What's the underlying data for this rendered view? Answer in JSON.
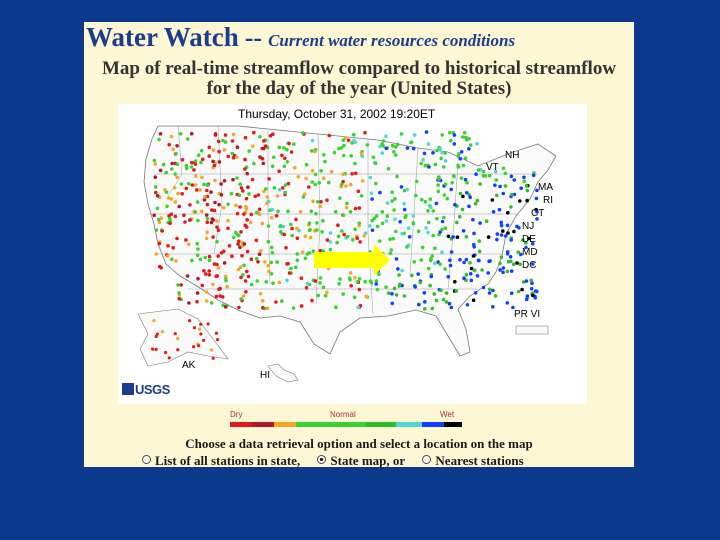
{
  "header": {
    "title": "Water Watch",
    "dash": "--",
    "subtitle_italic": "Current water resources conditions"
  },
  "description_line1": "Map of real-time streamflow compared to historical streamflow",
  "description_line2": "for the day of the year (United States)",
  "map": {
    "date": "Thursday, October 31, 2002 19:20ET",
    "labels": {
      "NH": "NH",
      "VT": "VT",
      "MA": "MA",
      "RI": "RI",
      "CT": "CT",
      "NJ": "NJ",
      "DE": "DE",
      "MD": "MD",
      "DC": "DC",
      "PRVI": "PR VI",
      "AK": "AK",
      "HI": "HI"
    },
    "logo": "USGS"
  },
  "legend": {
    "dry": "Dry",
    "normal": "Normal",
    "wet": "Wet",
    "colors": [
      "#e31a1c",
      "#b2182b",
      "#f5a623",
      "#39d231",
      "#2fbe2a",
      "#51d6d6",
      "#1040ff",
      "#000000"
    ]
  },
  "instructions": "Choose a data retrieval option and select a location on the map",
  "options": [
    {
      "label": "List of all stations in state,",
      "selected": false
    },
    {
      "label": "State map, or",
      "selected": true
    },
    {
      "label": "Nearest stations",
      "selected": false
    }
  ]
}
